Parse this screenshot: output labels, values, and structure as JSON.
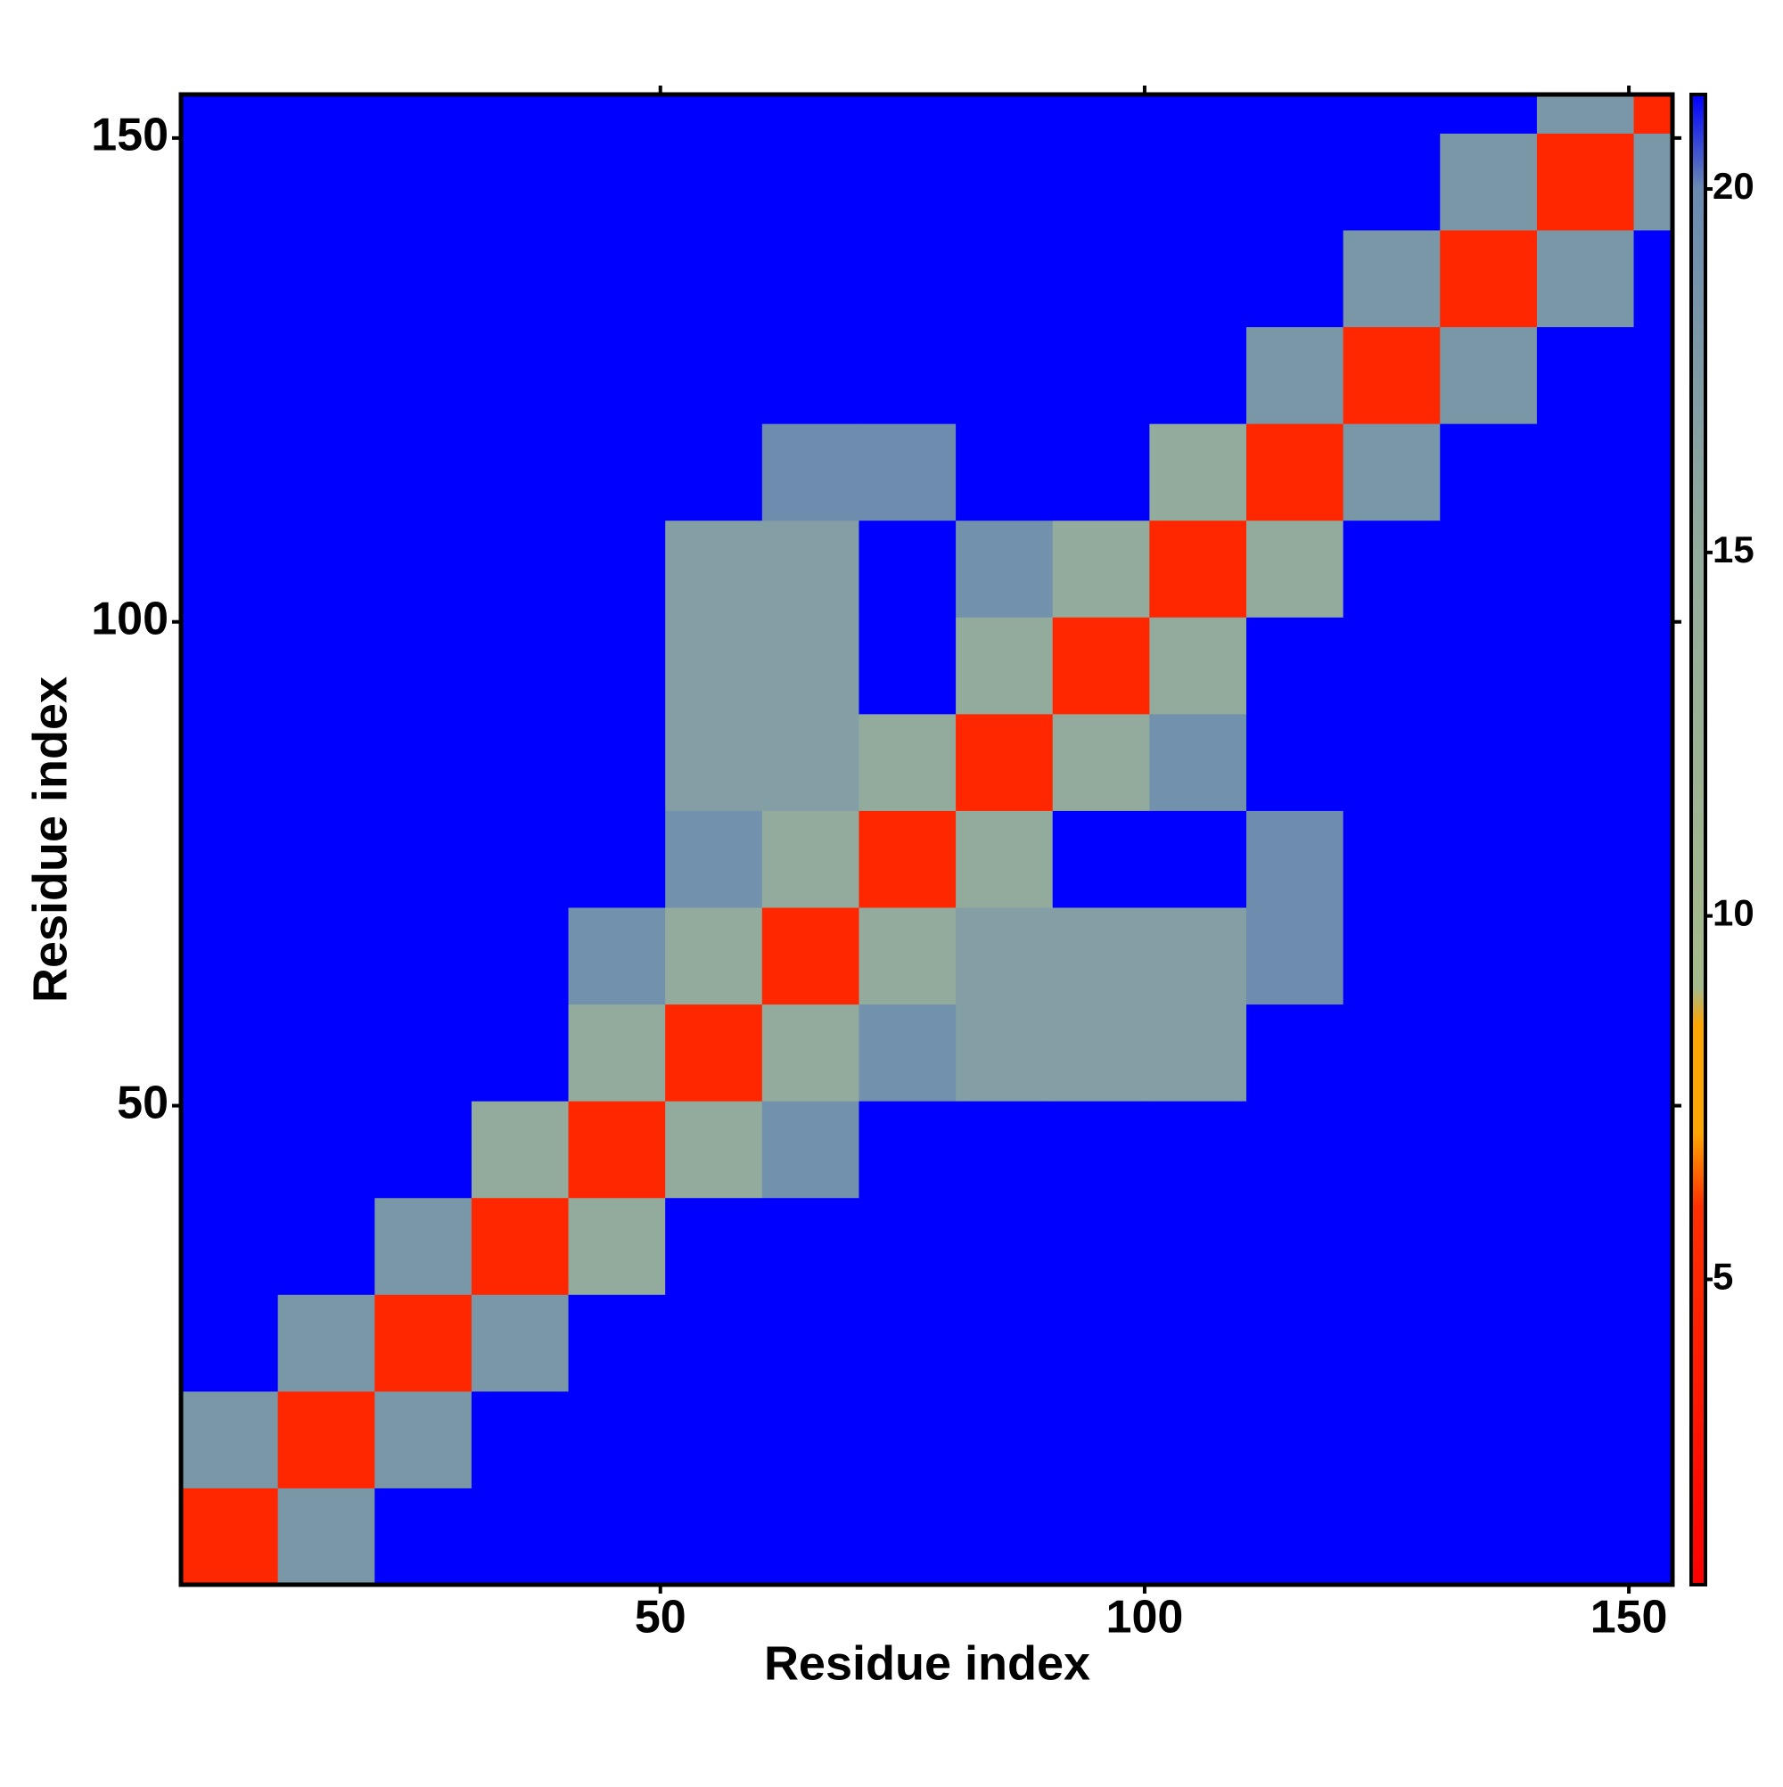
{
  "chart_data": {
    "type": "heatmap",
    "xlabel": "Residue index",
    "ylabel": "Residue index",
    "bins": [
      0.5,
      10.5,
      20.5,
      30.5,
      40.5,
      50.5,
      60.5,
      70.5,
      80.5,
      90.5,
      100.5,
      110.5,
      120.5,
      130.5,
      140.5,
      150.5,
      154.5
    ],
    "z": [
      [
        5,
        18,
        21.3,
        21.3,
        21.3,
        21.3,
        21.3,
        21.3,
        21.3,
        21.3,
        21.3,
        21.3,
        21.3,
        21.3,
        21.3,
        21.3
      ],
      [
        18,
        5,
        18,
        21.3,
        21.3,
        21.3,
        21.3,
        21.3,
        21.3,
        21.3,
        21.3,
        21.3,
        21.3,
        21.3,
        21.3,
        21.3
      ],
      [
        21.3,
        18,
        5,
        18,
        21.3,
        21.3,
        21.3,
        21.3,
        21.3,
        21.3,
        21.3,
        21.3,
        21.3,
        21.3,
        21.3,
        21.3
      ],
      [
        21.3,
        21.3,
        18,
        5,
        15,
        21.3,
        21.3,
        21.3,
        21.3,
        21.3,
        21.3,
        21.3,
        21.3,
        21.3,
        21.3,
        21.3
      ],
      [
        21.3,
        21.3,
        21.3,
        15,
        5,
        15,
        19,
        21.3,
        21.3,
        21.3,
        21.3,
        21.3,
        21.3,
        21.3,
        21.3,
        21.3
      ],
      [
        21.3,
        21.3,
        21.3,
        21.3,
        15,
        5,
        15,
        19,
        17,
        17,
        17,
        21.3,
        21.3,
        21.3,
        21.3,
        21.3
      ],
      [
        21.3,
        21.3,
        21.3,
        21.3,
        19,
        15,
        5,
        15,
        17,
        17,
        17,
        19.5,
        21.3,
        21.3,
        21.3,
        21.3
      ],
      [
        21.3,
        21.3,
        21.3,
        21.3,
        21.3,
        19,
        15,
        5,
        15,
        21.3,
        21.3,
        19.5,
        21.3,
        21.3,
        21.3,
        21.3
      ],
      [
        21.3,
        21.3,
        21.3,
        21.3,
        21.3,
        17,
        17,
        15,
        5,
        15,
        19,
        21.3,
        21.3,
        21.3,
        21.3,
        21.3
      ],
      [
        21.3,
        21.3,
        21.3,
        21.3,
        21.3,
        17,
        17,
        21.3,
        15,
        5,
        15,
        21.3,
        21.3,
        21.3,
        21.3,
        21.3
      ],
      [
        21.3,
        21.3,
        21.3,
        21.3,
        21.3,
        17,
        17,
        21.3,
        19,
        15,
        5,
        15,
        21.3,
        21.3,
        21.3,
        21.3
      ],
      [
        21.3,
        21.3,
        21.3,
        21.3,
        21.3,
        21.3,
        19.5,
        19.5,
        21.3,
        21.3,
        15,
        5,
        18,
        21.3,
        21.3,
        21.3
      ],
      [
        21.3,
        21.3,
        21.3,
        21.3,
        21.3,
        21.3,
        21.3,
        21.3,
        21.3,
        21.3,
        21.3,
        18,
        5,
        18,
        21.3,
        21.3
      ],
      [
        21.3,
        21.3,
        21.3,
        21.3,
        21.3,
        21.3,
        21.3,
        21.3,
        21.3,
        21.3,
        21.3,
        21.3,
        18,
        5,
        18,
        21.3
      ],
      [
        21.3,
        21.3,
        21.3,
        21.3,
        21.3,
        21.3,
        21.3,
        21.3,
        21.3,
        21.3,
        21.3,
        21.3,
        21.3,
        18,
        5,
        18
      ],
      [
        21.3,
        21.3,
        21.3,
        21.3,
        21.3,
        21.3,
        21.3,
        21.3,
        21.3,
        21.3,
        21.3,
        21.3,
        21.3,
        21.3,
        18,
        5
      ]
    ],
    "xlim": [
      0.5,
      154.5
    ],
    "ylim": [
      0.5,
      154.5
    ],
    "xticks": [
      50,
      100,
      150
    ],
    "yticks": [
      50,
      100,
      150
    ],
    "zlim": [
      0.8,
      21.3
    ],
    "zticks": [
      5,
      10,
      15,
      20
    ],
    "colorscale": [
      [
        0.8,
        "#ff0000"
      ],
      [
        6,
        "#ff3000"
      ],
      [
        7,
        "#ffa500"
      ],
      [
        8.5,
        "#ffa500"
      ],
      [
        9,
        "#a5ba8a"
      ],
      [
        15,
        "#93ab9c"
      ],
      [
        20,
        "#6a8ab0"
      ],
      [
        21.3,
        "#0000ff"
      ]
    ]
  }
}
